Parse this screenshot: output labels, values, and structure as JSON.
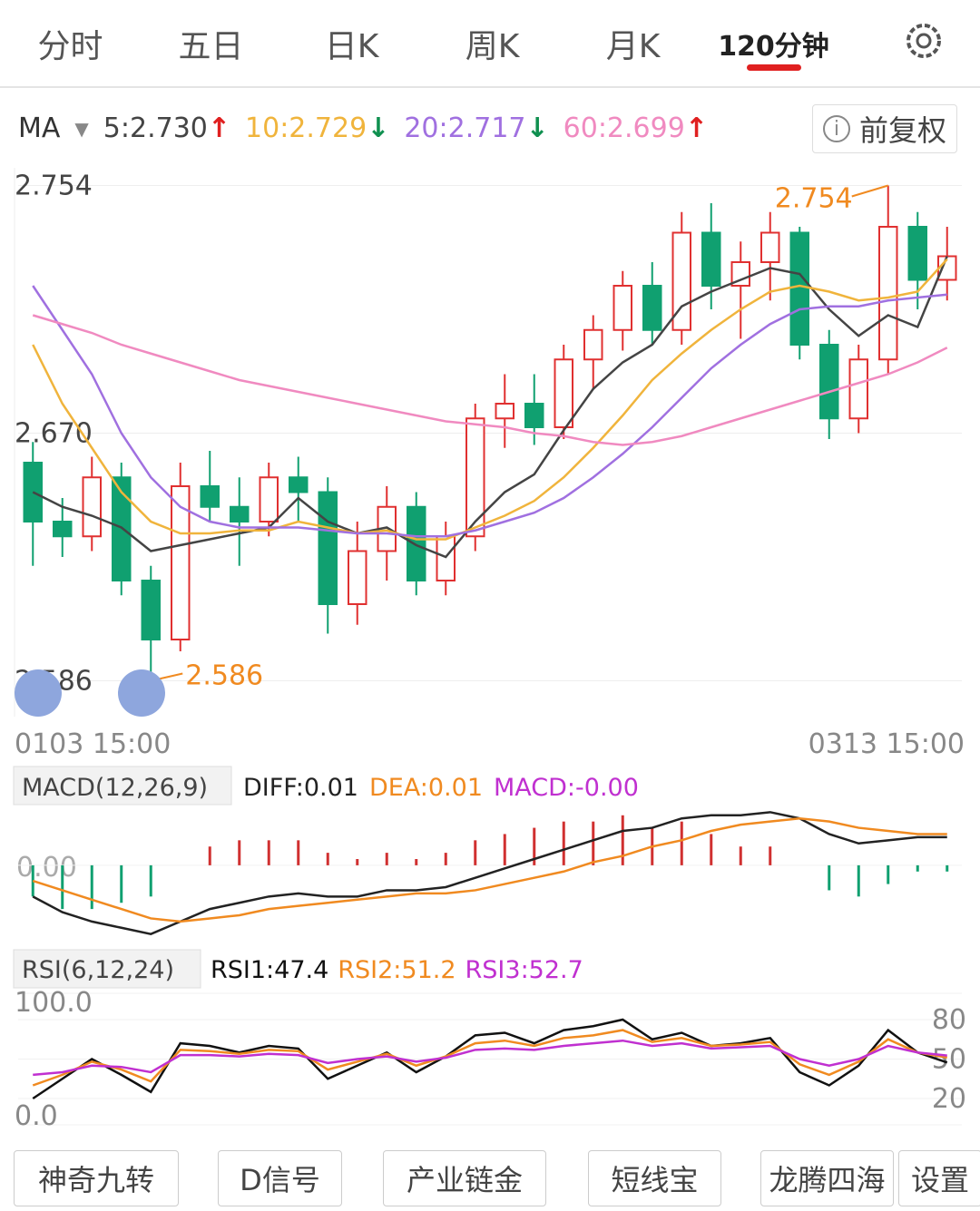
{
  "tabs": [
    "分时",
    "五日",
    "日K",
    "周K",
    "月K",
    "120分钟"
  ],
  "active_tab": 5,
  "ma_legend": {
    "label": "MA",
    "items": [
      {
        "text": "5:2.730",
        "arrow": "↑",
        "color": "#444444",
        "arrow_color": "#e02020"
      },
      {
        "text": "10:2.729",
        "arrow": "↓",
        "color": "#f0b43c",
        "arrow_color": "#109050"
      },
      {
        "text": "20:2.717",
        "arrow": "↓",
        "color": "#a070e0",
        "arrow_color": "#109050"
      },
      {
        "text": "60:2.699",
        "arrow": "↑",
        "color": "#f08ac0",
        "arrow_color": "#e02020"
      }
    ]
  },
  "restore": "前复权",
  "price_chart": {
    "type": "candlestick",
    "ylim": [
      2.58,
      2.76
    ],
    "yticks": [
      2.754,
      {
        "value": 2.67,
        "label": "2.670"
      },
      2.586
    ],
    "x_labels": [
      "0103 15:00",
      "0313 15:00"
    ],
    "high_label": "2.754",
    "low_label": "2.586",
    "up_color": "#e03030",
    "down_color": "#10a070",
    "open": [
      2.66,
      2.64,
      2.635,
      2.655,
      2.62,
      2.6,
      2.652,
      2.645,
      2.64,
      2.655,
      2.65,
      2.612,
      2.63,
      2.645,
      2.62,
      2.635,
      2.675,
      2.68,
      2.672,
      2.695,
      2.705,
      2.72,
      2.705,
      2.738,
      2.72,
      2.728,
      2.738,
      2.7,
      2.675,
      2.695,
      2.74,
      2.722
    ],
    "high": [
      2.667,
      2.648,
      2.662,
      2.66,
      2.625,
      2.66,
      2.664,
      2.655,
      2.66,
      2.662,
      2.655,
      2.64,
      2.652,
      2.65,
      2.64,
      2.68,
      2.69,
      2.69,
      2.7,
      2.71,
      2.725,
      2.728,
      2.745,
      2.748,
      2.735,
      2.745,
      2.74,
      2.705,
      2.7,
      2.754,
      2.745,
      2.74
    ],
    "low": [
      2.625,
      2.628,
      2.63,
      2.615,
      2.586,
      2.596,
      2.64,
      2.625,
      2.635,
      2.64,
      2.602,
      2.605,
      2.62,
      2.615,
      2.615,
      2.63,
      2.665,
      2.666,
      2.668,
      2.685,
      2.698,
      2.7,
      2.7,
      2.712,
      2.702,
      2.715,
      2.695,
      2.668,
      2.67,
      2.69,
      2.712,
      2.715
    ],
    "close": [
      2.64,
      2.635,
      2.655,
      2.62,
      2.6,
      2.652,
      2.645,
      2.64,
      2.655,
      2.65,
      2.612,
      2.63,
      2.645,
      2.62,
      2.635,
      2.675,
      2.68,
      2.672,
      2.695,
      2.705,
      2.72,
      2.705,
      2.738,
      2.72,
      2.728,
      2.738,
      2.7,
      2.675,
      2.695,
      2.74,
      2.722,
      2.73
    ],
    "ma": [
      {
        "name": "ma5",
        "color": "#444444",
        "values": [
          2.65,
          2.645,
          2.642,
          2.638,
          2.63,
          2.632,
          2.634,
          2.636,
          2.638,
          2.648,
          2.64,
          2.636,
          2.638,
          2.632,
          2.628,
          2.64,
          2.65,
          2.656,
          2.671,
          2.685,
          2.694,
          2.7,
          2.713,
          2.718,
          2.722,
          2.726,
          2.724,
          2.712,
          2.703,
          2.71,
          2.706,
          2.73
        ]
      },
      {
        "name": "ma10",
        "color": "#f0b43c",
        "values": [
          2.7,
          2.68,
          2.665,
          2.65,
          2.64,
          2.636,
          2.636,
          2.637,
          2.637,
          2.64,
          2.638,
          2.636,
          2.637,
          2.634,
          2.634,
          2.638,
          2.642,
          2.647,
          2.655,
          2.665,
          2.676,
          2.688,
          2.697,
          2.705,
          2.712,
          2.718,
          2.72,
          2.718,
          2.715,
          2.716,
          2.718,
          2.729
        ]
      },
      {
        "name": "ma20",
        "color": "#a070e0",
        "values": [
          2.72,
          2.705,
          2.69,
          2.67,
          2.655,
          2.645,
          2.64,
          2.638,
          2.638,
          2.638,
          2.637,
          2.636,
          2.636,
          2.635,
          2.635,
          2.637,
          2.64,
          2.643,
          2.648,
          2.655,
          2.663,
          2.672,
          2.682,
          2.692,
          2.7,
          2.707,
          2.712,
          2.713,
          2.713,
          2.715,
          2.716,
          2.717
        ]
      },
      {
        "name": "ma60",
        "color": "#f08ac0",
        "values": [
          2.71,
          2.707,
          2.704,
          2.7,
          2.697,
          2.694,
          2.691,
          2.688,
          2.686,
          2.684,
          2.682,
          2.68,
          2.678,
          2.676,
          2.674,
          2.673,
          2.672,
          2.67,
          2.669,
          2.667,
          2.666,
          2.667,
          2.669,
          2.672,
          2.675,
          2.678,
          2.681,
          2.684,
          2.687,
          2.69,
          2.694,
          2.699
        ]
      }
    ]
  },
  "macd_chart": {
    "type": "macd",
    "label": "MACD(12,26,9)",
    "legend": [
      "DIFF:0.01",
      "DEA:0.01",
      "MACD:-0.00"
    ],
    "legend_colors": [
      "#222222",
      "#f08a20",
      "#c030d0"
    ],
    "ylim": [
      -0.025,
      0.02
    ],
    "yticks": [
      {
        "value": 0,
        "label": "0.00"
      }
    ],
    "diff": [
      -0.01,
      -0.015,
      -0.018,
      -0.02,
      -0.022,
      -0.018,
      -0.014,
      -0.012,
      -0.01,
      -0.009,
      -0.01,
      -0.01,
      -0.008,
      -0.008,
      -0.007,
      -0.004,
      -0.001,
      0.002,
      0.005,
      0.008,
      0.011,
      0.012,
      0.015,
      0.016,
      0.016,
      0.017,
      0.015,
      0.01,
      0.007,
      0.008,
      0.009,
      0.009
    ],
    "dea": [
      -0.005,
      -0.008,
      -0.011,
      -0.014,
      -0.017,
      -0.018,
      -0.017,
      -0.016,
      -0.014,
      -0.013,
      -0.012,
      -0.011,
      -0.01,
      -0.009,
      -0.009,
      -0.008,
      -0.006,
      -0.004,
      -0.002,
      0.001,
      0.003,
      0.006,
      0.008,
      0.011,
      0.013,
      0.014,
      0.015,
      0.014,
      0.012,
      0.011,
      0.01,
      0.01
    ],
    "hist": [
      -0.01,
      -0.014,
      -0.014,
      -0.012,
      -0.01,
      0.0,
      0.006,
      0.008,
      0.008,
      0.008,
      0.004,
      0.002,
      0.004,
      0.002,
      0.004,
      0.008,
      0.01,
      0.012,
      0.014,
      0.014,
      0.016,
      0.012,
      0.014,
      0.01,
      0.006,
      0.006,
      0.0,
      -0.008,
      -0.01,
      -0.006,
      -0.002,
      -0.002
    ]
  },
  "rsi_chart": {
    "type": "rsi",
    "label": "RSI(6,12,24)",
    "ylim": [
      0,
      100
    ],
    "yticks_left": [
      {
        "value": 100,
        "label": "100.0"
      },
      {
        "value": 0,
        "label": "0.0"
      }
    ],
    "yticks_right": [
      80,
      50,
      20
    ],
    "series": [
      {
        "name": "RSI1:47.4",
        "color": "#111111",
        "values": [
          20,
          35,
          50,
          38,
          25,
          62,
          60,
          55,
          60,
          58,
          35,
          45,
          55,
          40,
          52,
          68,
          70,
          62,
          72,
          75,
          80,
          65,
          70,
          60,
          62,
          66,
          40,
          30,
          45,
          72,
          55,
          47.4
        ]
      },
      {
        "name": "RSI2:51.2",
        "color": "#f08a20",
        "values": [
          30,
          38,
          48,
          42,
          33,
          57,
          56,
          54,
          57,
          56,
          42,
          48,
          54,
          45,
          52,
          62,
          64,
          60,
          66,
          68,
          72,
          63,
          66,
          60,
          61,
          63,
          46,
          38,
          48,
          65,
          55,
          51.2
        ]
      },
      {
        "name": "RSI3:52.7",
        "color": "#c030d0",
        "values": [
          38,
          40,
          45,
          44,
          40,
          53,
          53,
          52,
          54,
          53,
          47,
          50,
          52,
          48,
          51,
          57,
          58,
          57,
          60,
          62,
          64,
          60,
          62,
          58,
          59,
          60,
          50,
          45,
          50,
          60,
          55,
          52.7
        ]
      }
    ]
  },
  "buttons": [
    "神奇九转",
    "D信号",
    "产业链金",
    "短线宝",
    "龙腾四海",
    "设置"
  ]
}
